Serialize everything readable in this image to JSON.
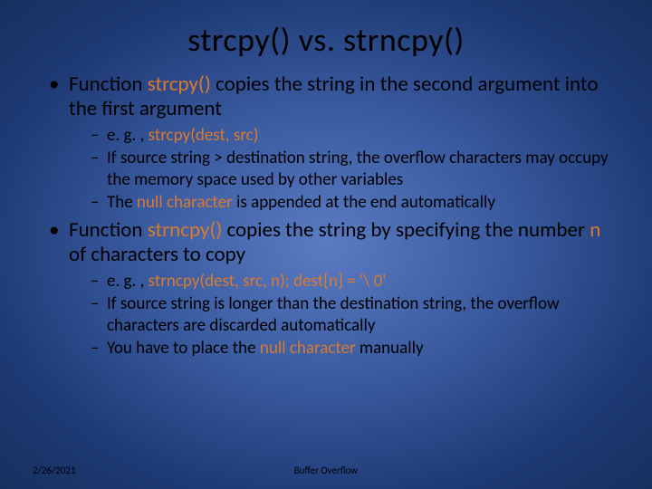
{
  "slide": {
    "background": {
      "type": "radial-gradient",
      "center_color": "#5a7bc2",
      "mid_color": "#3a5a9f",
      "outer_color": "#1e3a75",
      "edge_color": "#16305f"
    },
    "title": {
      "text": "strcpy() vs. strncpy()",
      "fontsize": 36,
      "color": "#000000",
      "align": "center"
    },
    "highlight_color": "#d97a2e",
    "text_color": "#000000",
    "bullets": [
      {
        "runs": [
          {
            "t": "Function "
          },
          {
            "t": "strcpy()",
            "hl": true
          },
          {
            "t": " copies the string in the second argument into the first argument"
          }
        ],
        "sub": [
          {
            "runs": [
              {
                "t": "e. g. , "
              },
              {
                "t": "strcpy(dest, src)",
                "hl": true
              }
            ]
          },
          {
            "runs": [
              {
                "t": "If source string > destination string, the overflow characters may occupy the memory space used by other variables"
              }
            ]
          },
          {
            "runs": [
              {
                "t": "The "
              },
              {
                "t": "null character",
                "hl": true
              },
              {
                "t": " is appended at the end automatically"
              }
            ]
          }
        ]
      },
      {
        "runs": [
          {
            "t": "Function "
          },
          {
            "t": "strncpy()",
            "hl": true
          },
          {
            "t": " copies the string by specifying the number "
          },
          {
            "t": "n",
            "hl": true
          },
          {
            "t": " of characters to copy"
          }
        ],
        "sub": [
          {
            "runs": [
              {
                "t": "e. g. , "
              },
              {
                "t": "strncpy(dest, src, n); dest[n] = '\\ 0'",
                "hl": true
              }
            ]
          },
          {
            "runs": [
              {
                "t": "If source string is longer than the destination string, the overflow characters are discarded automatically"
              }
            ]
          },
          {
            "runs": [
              {
                "t": "You have to place the "
              },
              {
                "t": "null character",
                "hl": true
              },
              {
                "t": " manually"
              }
            ]
          }
        ]
      }
    ],
    "footer": {
      "date": "2/26/2021",
      "center": "Buffer Overflow"
    },
    "body_fontsize": 23,
    "sub_fontsize": 19,
    "footer_fontsize": 11
  }
}
